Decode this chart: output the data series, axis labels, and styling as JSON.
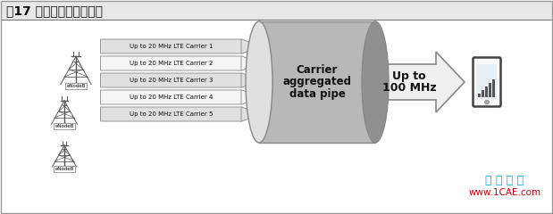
{
  "title": "图17 载波聚合原理示意图",
  "title_fontsize": 10,
  "bg_color": "#ffffff",
  "carriers": [
    "Up to 20 MHz LTE Carrier 1",
    "Up to 20 MHz LTE Carrier 2",
    "Up to 20 MHz LTE Carrier 3",
    "Up to 20 MHz LTE Carrier 4",
    "Up to 20 MHz LTE Carrier 5"
  ],
  "cylinder_text": [
    "Carrier",
    "aggregated",
    "data pipe"
  ],
  "arrow_text": [
    "Up to",
    "100 MHz"
  ],
  "watermark_cn": "仿 真 在 线",
  "watermark_url": "www.1CAE.com",
  "watermark_cn_color": "#00aaee",
  "watermark_url_color": "#cc0000",
  "cylinder_color": "#b8b8b8",
  "cylinder_top_color": "#e0e0e0",
  "cylinder_shadow_color": "#909090",
  "arrow_fill": "#f0f0f0",
  "arrow_edge": "#888888",
  "carrier_box_fill_odd": "#e0e0e0",
  "carrier_box_fill_even": "#f5f5f5",
  "carrier_box_edge": "#888888",
  "tower_color": "#666666",
  "title_bg": "#e8e8e8"
}
